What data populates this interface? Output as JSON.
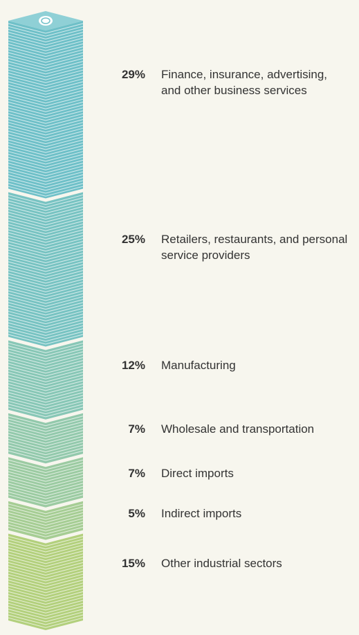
{
  "chart_data": {
    "type": "stack",
    "categories": [
      "Finance, insurance, advertising, and other business services",
      "Retailers, restaurants, and personal service providers",
      "Manufacturing",
      "Wholesale and transportation",
      "Direct imports",
      "Indirect imports",
      "Other industrial sectors"
    ],
    "values": [
      29,
      25,
      12,
      7,
      7,
      5,
      15
    ],
    "value_labels": [
      "29%",
      "25%",
      "12%",
      "7%",
      "7%",
      "5%",
      "15%"
    ],
    "colors": [
      "#6fc0c8",
      "#78c3c2",
      "#88c7b6",
      "#93c9ac",
      "#9ccba2",
      "#a6cd94",
      "#b3d07d"
    ]
  }
}
